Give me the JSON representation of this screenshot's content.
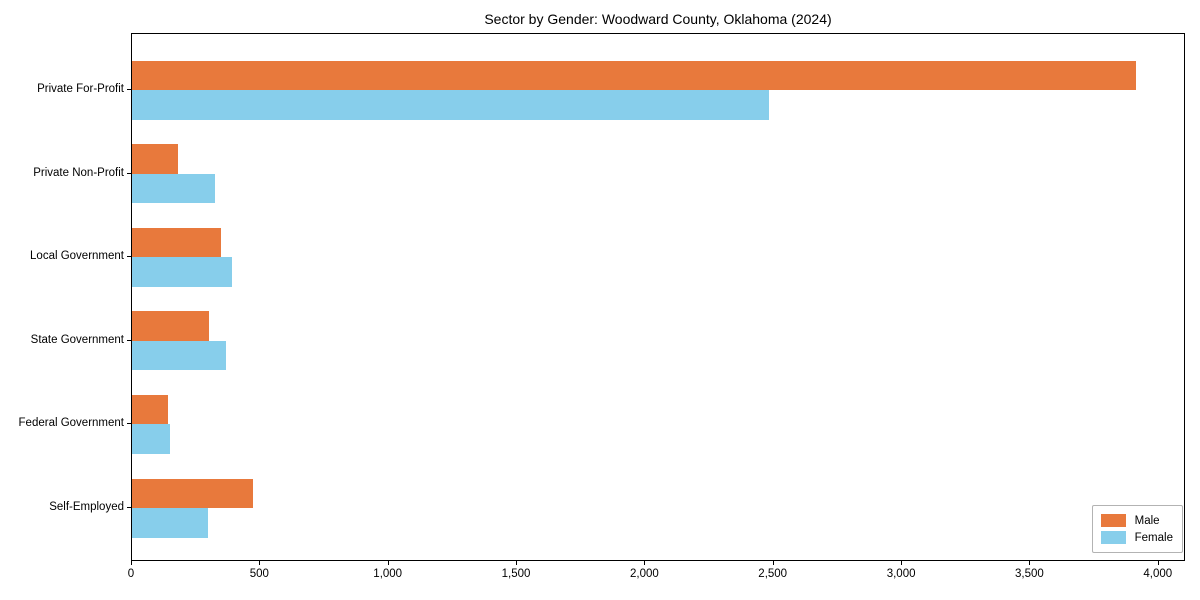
{
  "chart_data": {
    "type": "bar",
    "orientation": "horizontal",
    "title": "Sector by Gender: Woodward County, Oklahoma (2024)",
    "xlabel": "",
    "ylabel": "",
    "categories": [
      "Private For-Profit",
      "Private Non-Profit",
      "Local Government",
      "State Government",
      "Federal Government",
      "Self-Employed"
    ],
    "series": [
      {
        "name": "Male",
        "color": "#E8793C",
        "values": [
          3910,
          180,
          348,
          300,
          140,
          470
        ]
      },
      {
        "name": "Female",
        "color": "#87CEEB",
        "values": [
          2480,
          325,
          390,
          365,
          148,
          295
        ]
      }
    ],
    "x_tick_values": [
      0,
      500,
      1000,
      1500,
      2000,
      2500,
      3000,
      3500,
      4000
    ],
    "x_tick_labels": [
      "0",
      "500",
      "1,000",
      "1,500",
      "2,000",
      "2,500",
      "3,000",
      "3,500",
      "4,000"
    ],
    "xlim": [
      0,
      4106
    ],
    "grid": false,
    "legend": {
      "position": "lower-right",
      "entries": [
        "Male",
        "Female"
      ]
    },
    "spine_color": "#000000",
    "background_color": "#ffffff"
  }
}
